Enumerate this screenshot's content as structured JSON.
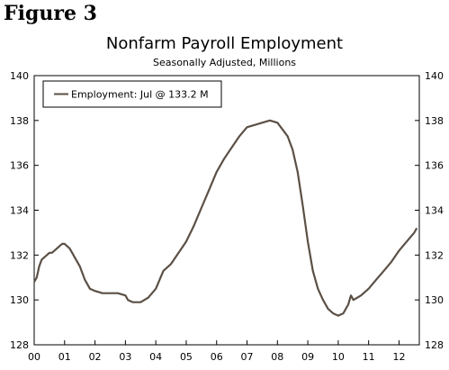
{
  "figure_label": "Figure 3",
  "chart_data": {
    "type": "line",
    "title": "Nonfarm Payroll Employment",
    "subtitle": "Seasonally Adjusted, Millions",
    "xlabel": "",
    "ylabel": "",
    "ylim": [
      128,
      140
    ],
    "xlim": [
      2000.0,
      2012.667
    ],
    "yticks": [
      128,
      130,
      132,
      134,
      136,
      138,
      140
    ],
    "ytick_labels": [
      "128",
      "130",
      "132",
      "134",
      "136",
      "138",
      "140"
    ],
    "xticks": [
      2000,
      2001,
      2002,
      2003,
      2004,
      2005,
      2006,
      2007,
      2008,
      2009,
      2010,
      2011,
      2012
    ],
    "xtick_labels": [
      "00",
      "01",
      "02",
      "03",
      "04",
      "05",
      "06",
      "07",
      "08",
      "09",
      "10",
      "11",
      "12"
    ],
    "grid": false,
    "legend_position": "top-left",
    "line_color": "#5b5046",
    "series": [
      {
        "name": "Employment: Jul @ 133.2 M",
        "x": [
          2000.0,
          2000.083,
          2000.167,
          2000.25,
          2000.333,
          2000.417,
          2000.5,
          2000.583,
          2000.667,
          2000.75,
          2000.833,
          2000.917,
          2001.0,
          2001.083,
          2001.167,
          2001.25,
          2001.333,
          2001.5,
          2001.667,
          2001.833,
          2002.0,
          2002.25,
          2002.5,
          2002.75,
          2003.0,
          2003.083,
          2003.25,
          2003.5,
          2003.75,
          2004.0,
          2004.25,
          2004.5,
          2004.75,
          2005.0,
          2005.25,
          2005.5,
          2005.75,
          2006.0,
          2006.25,
          2006.5,
          2006.75,
          2007.0,
          2007.25,
          2007.5,
          2007.75,
          2008.0,
          2008.167,
          2008.333,
          2008.5,
          2008.667,
          2008.833,
          2009.0,
          2009.167,
          2009.333,
          2009.5,
          2009.667,
          2009.833,
          2010.0,
          2010.167,
          2010.333,
          2010.417,
          2010.5,
          2010.75,
          2011.0,
          2011.25,
          2011.5,
          2011.75,
          2012.0,
          2012.25,
          2012.5,
          2012.583
        ],
        "y": [
          130.8,
          131.0,
          131.5,
          131.8,
          131.9,
          132.0,
          132.1,
          132.1,
          132.2,
          132.3,
          132.4,
          132.5,
          132.5,
          132.4,
          132.3,
          132.1,
          131.9,
          131.5,
          130.9,
          130.5,
          130.4,
          130.3,
          130.3,
          130.3,
          130.2,
          130.0,
          129.9,
          129.9,
          130.1,
          130.5,
          131.3,
          131.6,
          132.1,
          132.6,
          133.3,
          134.1,
          134.9,
          135.7,
          136.3,
          136.8,
          137.3,
          137.7,
          137.8,
          137.9,
          138.0,
          137.9,
          137.6,
          137.3,
          136.7,
          135.7,
          134.2,
          132.6,
          131.3,
          130.5,
          130.0,
          129.6,
          129.4,
          129.3,
          129.4,
          129.8,
          130.2,
          130.0,
          130.2,
          130.5,
          130.9,
          131.3,
          131.7,
          132.2,
          132.6,
          133.0,
          133.2
        ]
      }
    ]
  }
}
